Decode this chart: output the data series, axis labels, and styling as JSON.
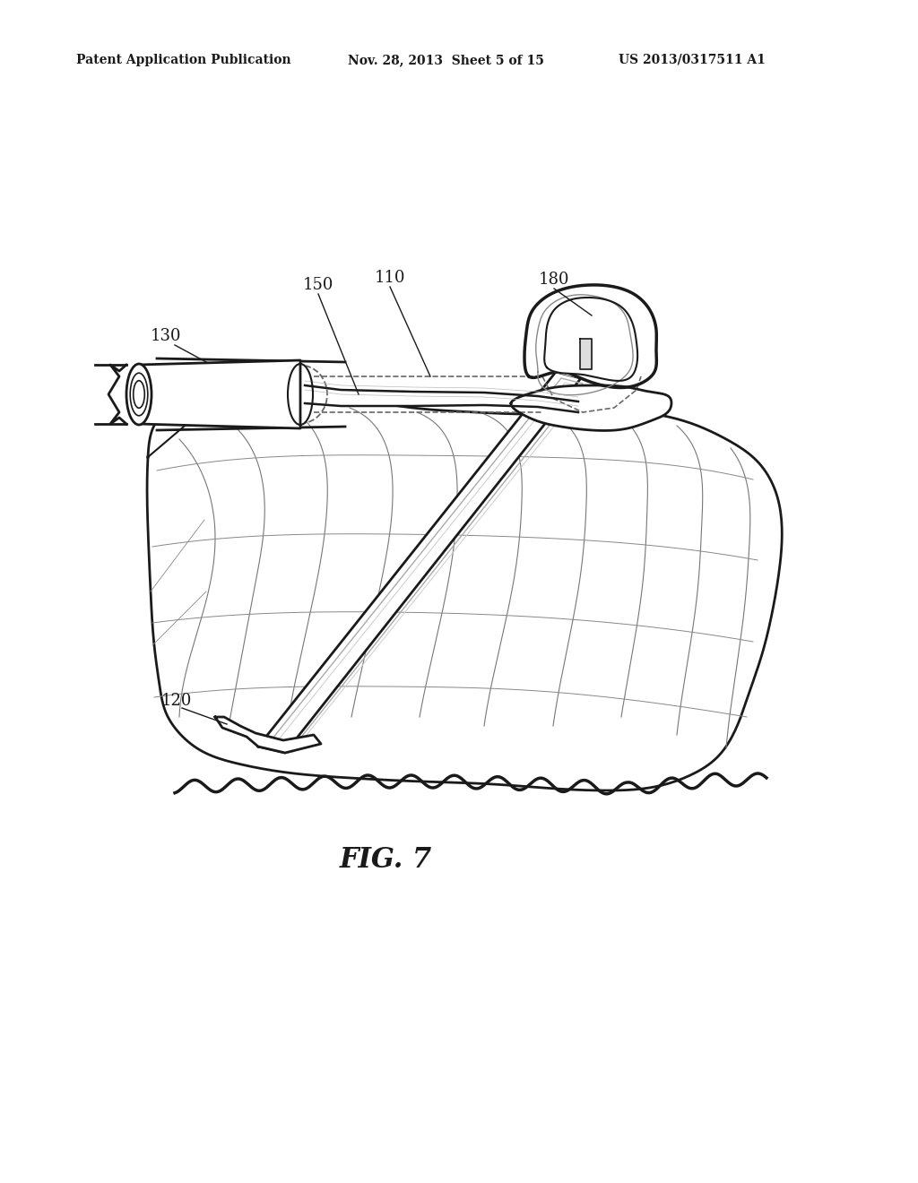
{
  "title": "FIG. 7",
  "header_left": "Patent Application Publication",
  "header_mid": "Nov. 28, 2013  Sheet 5 of 15",
  "header_right": "US 2013/0317511 A1",
  "bg_color": "#ffffff",
  "line_color": "#1a1a1a",
  "dashed_color": "#666666",
  "lw_main": 2.0,
  "lw_thin": 1.0,
  "lw_thick": 2.5
}
